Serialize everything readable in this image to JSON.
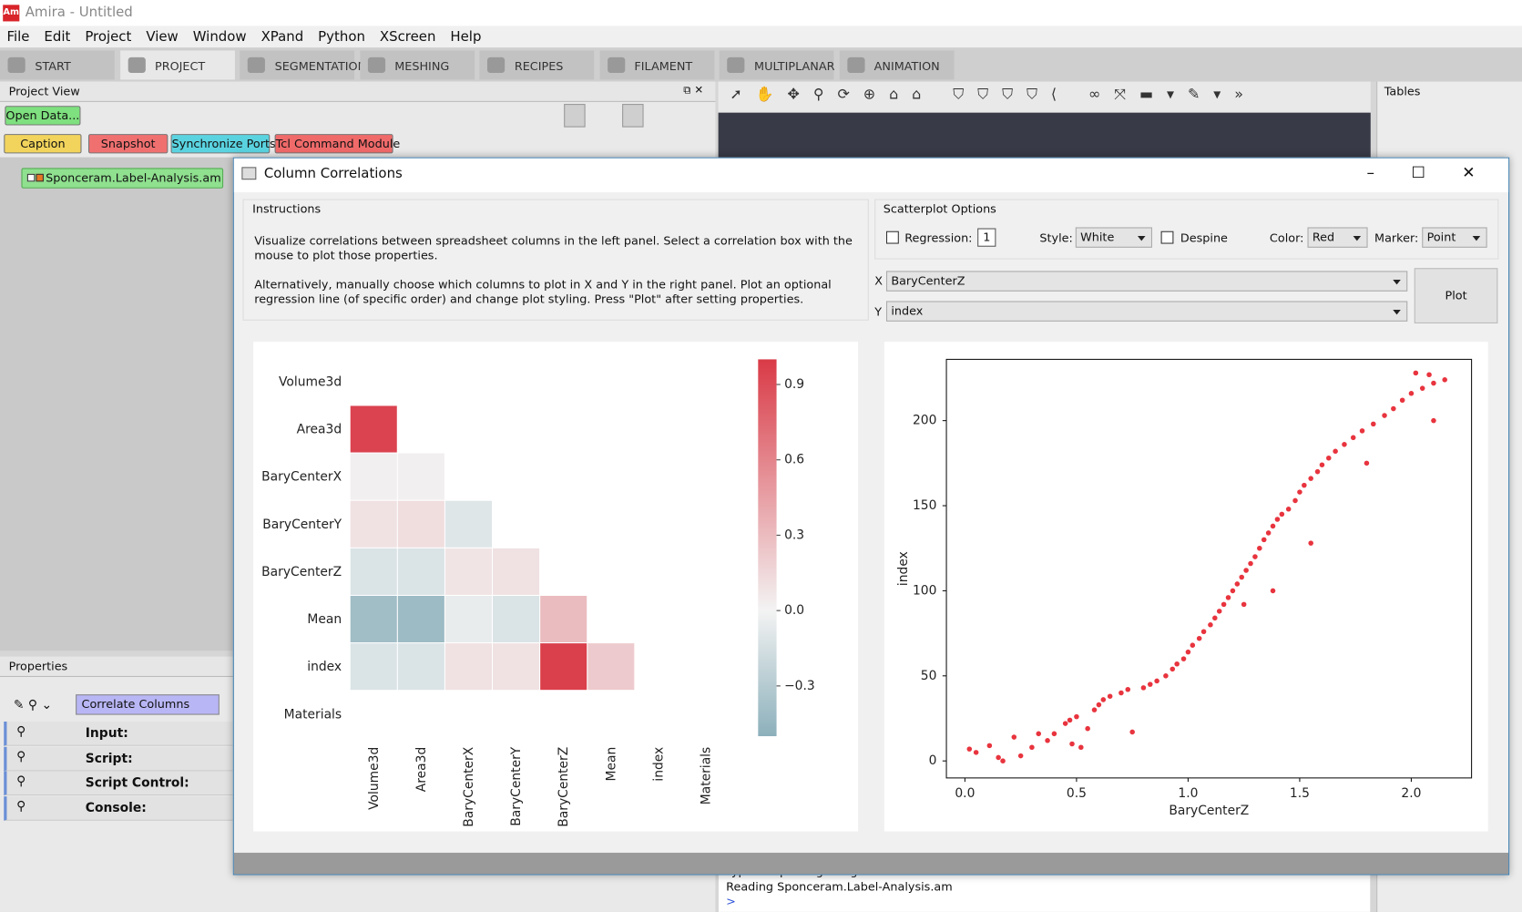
{
  "window": {
    "title": "Amira - Untitled",
    "icon": "Am"
  },
  "menu": [
    "File",
    "Edit",
    "Project",
    "View",
    "Window",
    "XPand",
    "Python",
    "XScreen",
    "Help"
  ],
  "tabs": [
    "START",
    "PROJECT",
    "SEGMENTATION",
    "MESHING",
    "RECIPES",
    "FILAMENT",
    "MULTIPLANAR",
    "ANIMATION"
  ],
  "project_view": {
    "title": "Project View",
    "open_data": "Open Data...",
    "buttons": [
      "Caption",
      "Snapshot",
      "Synchronize Ports",
      "Tcl Command Module"
    ],
    "node": "Sponceram.Label-Analysis.am"
  },
  "properties": {
    "title": "Properties",
    "module": "Correlate Columns",
    "ports": [
      "Input:",
      "Script:",
      "Script Control:",
      "Console:"
    ]
  },
  "tables": {
    "title": "Tables"
  },
  "console": {
    "lines": [
      "Type \"help\" for getting started.",
      "Reading Sponceram.Label-Analysis.am",
      ">"
    ]
  },
  "dialog": {
    "title": "Column Correlations",
    "instructions": {
      "title": "Instructions",
      "paragraphs": [
        "Visualize correlations between spreadsheet columns in the left panel. Select a correlation box with the mouse to plot those properties.",
        "Alternatively, manually choose which columns to plot in X and Y in the right panel. Plot an optional regression line (of specific order) and change plot styling. Press \"Plot\" after setting properties."
      ]
    },
    "options": {
      "title": "Scatterplot Options",
      "regression": "Regression:",
      "order": "1",
      "style": "Style:",
      "style_value": "White",
      "despine": "Despine",
      "color": "Color:",
      "color_value": "Red",
      "marker": "Marker:",
      "marker_value": "Point"
    },
    "x_label": "X",
    "x_value": "BaryCenterZ",
    "y_label": "Y",
    "y_value": "index",
    "plot": "Plot"
  },
  "chart_data": [
    {
      "type": "heatmap",
      "categories": [
        "Volume3d",
        "Area3d",
        "BaryCenterX",
        "BaryCenterY",
        "BaryCenterZ",
        "Mean",
        "index",
        "Materials"
      ],
      "values": [
        [
          null,
          null,
          null,
          null,
          null,
          null,
          null,
          null
        ],
        [
          0.95,
          null,
          null,
          null,
          null,
          null,
          null,
          null
        ],
        [
          0.02,
          0.02,
          null,
          null,
          null,
          null,
          null,
          null
        ],
        [
          0.1,
          0.12,
          -0.1,
          null,
          null,
          null,
          null,
          null
        ],
        [
          -0.12,
          -0.12,
          0.08,
          0.1,
          null,
          null,
          null,
          null
        ],
        [
          -0.4,
          -0.42,
          -0.05,
          -0.12,
          0.3,
          null,
          null,
          null
        ],
        [
          -0.12,
          -0.12,
          0.1,
          0.1,
          0.97,
          0.22,
          null,
          null
        ],
        [
          null,
          null,
          null,
          null,
          null,
          null,
          null,
          null
        ]
      ],
      "colors": [
        "#8cb0bb",
        "#f3f3f3",
        "#d93a46"
      ],
      "zlim": [
        -0.5,
        1.0
      ],
      "zticks": [
        0.9,
        0.6,
        0.3,
        {
          "value": 0,
          "label": "0.0"
        },
        {
          "value": -0.3,
          "label": "−0.3"
        }
      ]
    },
    {
      "type": "scatter",
      "xlabel": "BaryCenterZ",
      "ylabel": "index",
      "color": "#e8343e",
      "xlim": [
        -0.083,
        2.27
      ],
      "ylim": [
        -10,
        236
      ],
      "xticks": [
        {
          "value": 0,
          "label": "0.0"
        },
        0.5,
        {
          "value": 1,
          "label": "1.0"
        },
        1.5,
        {
          "value": 2,
          "label": "2.0"
        }
      ],
      "yticks": [
        0,
        50,
        100,
        150,
        200
      ],
      "x": [
        0.02,
        0.05,
        0.11,
        0.15,
        0.17,
        0.22,
        0.25,
        0.3,
        0.33,
        0.37,
        0.4,
        0.45,
        0.47,
        0.5,
        0.48,
        0.52,
        0.58,
        0.6,
        0.62,
        0.65,
        0.7,
        0.75,
        0.73,
        0.8,
        0.83,
        0.86,
        0.9,
        0.93,
        0.95,
        0.98,
        1.0,
        1.02,
        1.05,
        1.07,
        1.1,
        1.12,
        1.14,
        1.16,
        1.18,
        1.2,
        1.22,
        1.24,
        1.26,
        1.28,
        1.3,
        1.32,
        1.34,
        1.36,
        1.38,
        1.4,
        1.42,
        1.45,
        1.48,
        1.5,
        1.52,
        1.55,
        1.58,
        1.6,
        1.63,
        1.66,
        1.7,
        1.74,
        1.78,
        1.83,
        1.88,
        1.92,
        1.96,
        2.0,
        2.05,
        2.1,
        2.15,
        2.08,
        2.02,
        2.1,
        1.8,
        1.55,
        1.25,
        1.38,
        0.55
      ],
      "values": [
        7,
        5,
        9,
        2,
        0,
        14,
        3,
        8,
        16,
        12,
        16,
        22,
        24,
        26,
        10,
        8,
        30,
        33,
        36,
        38,
        40,
        17,
        42,
        43,
        45,
        47,
        50,
        54,
        57,
        60,
        64,
        68,
        72,
        76,
        80,
        84,
        88,
        92,
        96,
        100,
        104,
        108,
        112,
        116,
        120,
        125,
        130,
        134,
        138,
        142,
        145,
        148,
        153,
        158,
        162,
        166,
        170,
        174,
        178,
        182,
        186,
        190,
        194,
        198,
        203,
        207,
        212,
        216,
        219,
        222,
        224,
        227,
        228,
        200,
        175,
        128,
        92,
        100,
        19
      ]
    }
  ]
}
